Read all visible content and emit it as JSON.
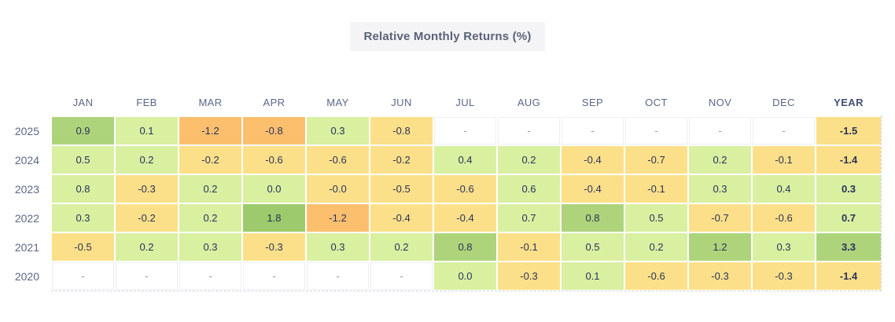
{
  "title": "Relative Monthly Returns (%)",
  "palette": {
    "g3": "#9cca6c",
    "g2": "#aed47b",
    "g1": "#d9f0a1",
    "y": "#fce089",
    "o": "#fcbf6e",
    "none": "#ffffff"
  },
  "table": {
    "columns": [
      "JAN",
      "FEB",
      "MAR",
      "APR",
      "MAY",
      "JUN",
      "JUL",
      "AUG",
      "SEP",
      "OCT",
      "NOV",
      "DEC",
      "YEAR"
    ],
    "rows": [
      {
        "year": "2025",
        "cells": [
          {
            "v": "0.9",
            "c": "g2"
          },
          {
            "v": "0.1",
            "c": "g1"
          },
          {
            "v": "-1.2",
            "c": "o"
          },
          {
            "v": "-0.8",
            "c": "o"
          },
          {
            "v": "0.3",
            "c": "g1"
          },
          {
            "v": "-0.8",
            "c": "y"
          },
          {
            "v": "-",
            "c": "none"
          },
          {
            "v": "-",
            "c": "none"
          },
          {
            "v": "-",
            "c": "none"
          },
          {
            "v": "-",
            "c": "none"
          },
          {
            "v": "-",
            "c": "none"
          },
          {
            "v": "-",
            "c": "none"
          },
          {
            "v": "-1.5",
            "c": "y"
          }
        ]
      },
      {
        "year": "2024",
        "cells": [
          {
            "v": "0.5",
            "c": "g1"
          },
          {
            "v": "0.2",
            "c": "g1"
          },
          {
            "v": "-0.2",
            "c": "y"
          },
          {
            "v": "-0.6",
            "c": "y"
          },
          {
            "v": "-0.6",
            "c": "y"
          },
          {
            "v": "-0.2",
            "c": "y"
          },
          {
            "v": "0.4",
            "c": "g1"
          },
          {
            "v": "0.2",
            "c": "g1"
          },
          {
            "v": "-0.4",
            "c": "y"
          },
          {
            "v": "-0.7",
            "c": "y"
          },
          {
            "v": "0.2",
            "c": "g1"
          },
          {
            "v": "-0.1",
            "c": "y"
          },
          {
            "v": "-1.4",
            "c": "y"
          }
        ]
      },
      {
        "year": "2023",
        "cells": [
          {
            "v": "0.8",
            "c": "g1"
          },
          {
            "v": "-0.3",
            "c": "y"
          },
          {
            "v": "0.2",
            "c": "g1"
          },
          {
            "v": "0.0",
            "c": "g1"
          },
          {
            "v": "-0.0",
            "c": "y"
          },
          {
            "v": "-0.5",
            "c": "y"
          },
          {
            "v": "-0.6",
            "c": "y"
          },
          {
            "v": "0.6",
            "c": "g1"
          },
          {
            "v": "-0.4",
            "c": "y"
          },
          {
            "v": "-0.1",
            "c": "y"
          },
          {
            "v": "0.3",
            "c": "g1"
          },
          {
            "v": "0.4",
            "c": "g1"
          },
          {
            "v": "0.3",
            "c": "g1"
          }
        ]
      },
      {
        "year": "2022",
        "cells": [
          {
            "v": "0.3",
            "c": "g1"
          },
          {
            "v": "-0.2",
            "c": "y"
          },
          {
            "v": "0.2",
            "c": "g1"
          },
          {
            "v": "1.8",
            "c": "g3"
          },
          {
            "v": "-1.2",
            "c": "o"
          },
          {
            "v": "-0.4",
            "c": "y"
          },
          {
            "v": "-0.4",
            "c": "y"
          },
          {
            "v": "0.7",
            "c": "g1"
          },
          {
            "v": "0.8",
            "c": "g2"
          },
          {
            "v": "0.5",
            "c": "g1"
          },
          {
            "v": "-0.7",
            "c": "y"
          },
          {
            "v": "-0.6",
            "c": "y"
          },
          {
            "v": "0.7",
            "c": "g1"
          }
        ]
      },
      {
        "year": "2021",
        "cells": [
          {
            "v": "-0.5",
            "c": "y"
          },
          {
            "v": "0.2",
            "c": "g1"
          },
          {
            "v": "0.3",
            "c": "g1"
          },
          {
            "v": "-0.3",
            "c": "y"
          },
          {
            "v": "0.3",
            "c": "g1"
          },
          {
            "v": "0.2",
            "c": "g1"
          },
          {
            "v": "0.8",
            "c": "g2"
          },
          {
            "v": "-0.1",
            "c": "y"
          },
          {
            "v": "0.5",
            "c": "g1"
          },
          {
            "v": "0.2",
            "c": "g1"
          },
          {
            "v": "1.2",
            "c": "g2"
          },
          {
            "v": "0.3",
            "c": "g1"
          },
          {
            "v": "3.3",
            "c": "g2"
          }
        ]
      },
      {
        "year": "2020",
        "cells": [
          {
            "v": "-",
            "c": "none"
          },
          {
            "v": "-",
            "c": "none"
          },
          {
            "v": "-",
            "c": "none"
          },
          {
            "v": "-",
            "c": "none"
          },
          {
            "v": "-",
            "c": "none"
          },
          {
            "v": "-",
            "c": "none"
          },
          {
            "v": "0.0",
            "c": "g1"
          },
          {
            "v": "-0.3",
            "c": "y"
          },
          {
            "v": "0.1",
            "c": "g1"
          },
          {
            "v": "-0.6",
            "c": "y"
          },
          {
            "v": "-0.3",
            "c": "y"
          },
          {
            "v": "-0.3",
            "c": "y"
          },
          {
            "v": "-1.4",
            "c": "y"
          }
        ]
      }
    ]
  },
  "chart_data": {
    "type": "heatmap",
    "title": "Relative Monthly Returns (%)",
    "x": [
      "JAN",
      "FEB",
      "MAR",
      "APR",
      "MAY",
      "JUN",
      "JUL",
      "AUG",
      "SEP",
      "OCT",
      "NOV",
      "DEC"
    ],
    "series": [
      {
        "name": "2025",
        "values": [
          0.9,
          0.1,
          -1.2,
          -0.8,
          0.3,
          -0.8,
          null,
          null,
          null,
          null,
          null,
          null
        ],
        "year_total": -1.5
      },
      {
        "name": "2024",
        "values": [
          0.5,
          0.2,
          -0.2,
          -0.6,
          -0.6,
          -0.2,
          0.4,
          0.2,
          -0.4,
          -0.7,
          0.2,
          -0.1
        ],
        "year_total": -1.4
      },
      {
        "name": "2023",
        "values": [
          0.8,
          -0.3,
          0.2,
          0.0,
          -0.0,
          -0.5,
          -0.6,
          0.6,
          -0.4,
          -0.1,
          0.3,
          0.4
        ],
        "year_total": 0.3
      },
      {
        "name": "2022",
        "values": [
          0.3,
          -0.2,
          0.2,
          1.8,
          -1.2,
          -0.4,
          -0.4,
          0.7,
          0.8,
          0.5,
          -0.7,
          -0.6
        ],
        "year_total": 0.7
      },
      {
        "name": "2021",
        "values": [
          -0.5,
          0.2,
          0.3,
          -0.3,
          0.3,
          0.2,
          0.8,
          -0.1,
          0.5,
          0.2,
          1.2,
          0.3
        ],
        "year_total": 3.3
      },
      {
        "name": "2020",
        "values": [
          null,
          null,
          null,
          null,
          null,
          null,
          0.0,
          -0.3,
          0.1,
          -0.6,
          -0.3,
          -0.3
        ],
        "year_total": -1.4
      }
    ],
    "legend": "cell color encodes value: green = positive, yellow/orange = negative, white dash = no data",
    "grid": false,
    "legend_position": "none"
  }
}
